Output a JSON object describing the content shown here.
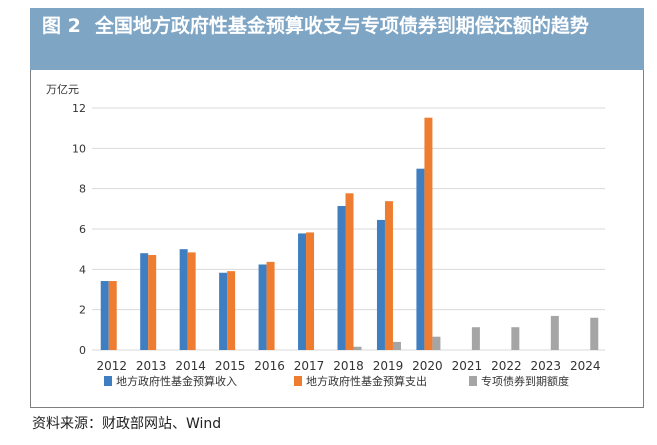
{
  "header": {
    "figure_label": "图 2",
    "title": "全国地方政府性基金预算收支与专项债券到期偿还额的趋势"
  },
  "source_note": "资料来源：财政部网站、Wind",
  "colors": {
    "title_bg": "#7fa5c5",
    "income": "#3f7fc1",
    "expenditure": "#ee7d31",
    "maturity": "#a5a5a5",
    "grid": "#d9d9d9"
  },
  "chart_data": {
    "type": "bar",
    "title": "全国地方政府性基金预算收支与专项债券到期偿还额的趋势",
    "ylabel": "万亿元",
    "xlabel": "",
    "ylim": [
      0,
      12
    ],
    "yticks": [
      0,
      2,
      4,
      6,
      8,
      10,
      12
    ],
    "grid": true,
    "legend_position": "bottom",
    "categories": [
      "2012",
      "2013",
      "2014",
      "2015",
      "2016",
      "2017",
      "2018",
      "2019",
      "2020",
      "2021",
      "2022",
      "2023",
      "2024"
    ],
    "series": [
      {
        "name": "地方政府性基金预算收入",
        "color": "#3f7fc1",
        "values": [
          3.42,
          4.8,
          5.0,
          3.83,
          4.24,
          5.78,
          7.14,
          6.45,
          8.99,
          null,
          null,
          null,
          null
        ]
      },
      {
        "name": "地方政府性基金预算支出",
        "color": "#ee7d31",
        "values": [
          3.42,
          4.71,
          4.84,
          3.91,
          4.37,
          5.83,
          7.77,
          7.38,
          11.52,
          null,
          null,
          null,
          null
        ]
      },
      {
        "name": "专项债券到期额度",
        "color": "#a5a5a5",
        "values": [
          null,
          null,
          null,
          null,
          null,
          null,
          0.16,
          0.4,
          0.66,
          1.13,
          1.13,
          1.69,
          1.6
        ]
      }
    ]
  }
}
